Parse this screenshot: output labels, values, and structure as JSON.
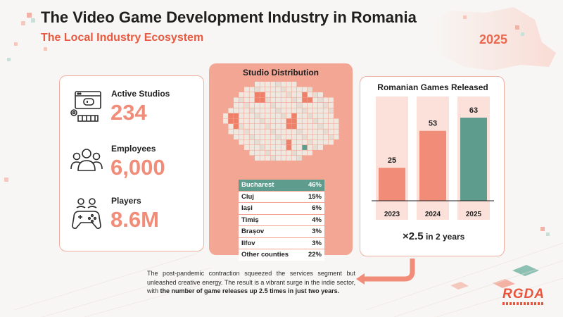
{
  "header": {
    "title": "The Video Game Development Industry in Romania",
    "subtitle": "The Local Industry Ecosystem",
    "year": "2025"
  },
  "stats": [
    {
      "label": "Active Studios",
      "value": "234",
      "icon": "studio-icon"
    },
    {
      "label": "Employees",
      "value": "6,000",
      "icon": "people-icon"
    },
    {
      "label": "Players",
      "value": "8.6M",
      "icon": "gamepad-icon"
    }
  ],
  "distribution": {
    "title": "Studio Distribution",
    "rows": [
      {
        "name": "Bucharest",
        "pct": "46%"
      },
      {
        "name": "Cluj",
        "pct": "15%"
      },
      {
        "name": "Iași",
        "pct": "6%"
      },
      {
        "name": "Timiș",
        "pct": "4%"
      },
      {
        "name": "Brașov",
        "pct": "3%"
      },
      {
        "name": "Ilfov",
        "pct": "3%"
      },
      {
        "name": "Other counties",
        "pct": "22%"
      }
    ]
  },
  "chart_data": {
    "type": "bar",
    "title": "Romanian Games Released",
    "categories": [
      "2023",
      "2024",
      "2025"
    ],
    "values": [
      25,
      53,
      63
    ],
    "highlight_index": 2,
    "colors": {
      "bar": "#f08c78",
      "highlight": "#5e9d8d",
      "column_bg": "#fbe1da"
    },
    "ylim": [
      0,
      70
    ]
  },
  "growth": {
    "multiplier": "×2.5",
    "rest": " in 2 years"
  },
  "note": {
    "text": "The post-pandemic contraction squeezed the services segment but unleashed creative energy. The result is a vibrant surge in the indie sector, with ",
    "bold": "the number of game releases up 2.5 times in just two years."
  },
  "logo": {
    "text": "RGDA"
  }
}
